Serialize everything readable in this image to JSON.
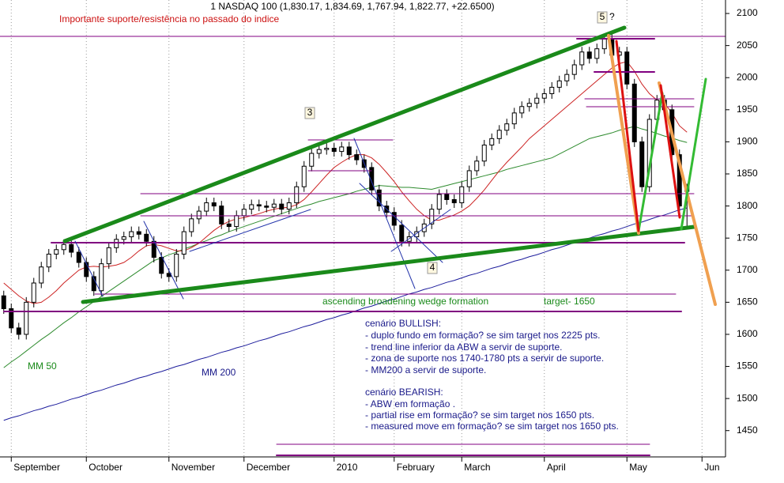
{
  "chart_data": {
    "type": "candlestick",
    "title": "1 NASDAQ 100 (1,830.17, 1,834.69, 1,767.94, 1,822.77, +22.6500)",
    "categories": [
      null,
      "September",
      null,
      null,
      null,
      null,
      null,
      null,
      null,
      null,
      null,
      "October",
      null,
      null,
      null,
      null,
      null,
      null,
      null,
      null,
      null,
      null,
      "November",
      null,
      null,
      null,
      null,
      null,
      null,
      null,
      null,
      null,
      "December",
      null,
      null,
      null,
      null,
      null,
      null,
      null,
      null,
      null,
      null,
      null,
      "2010",
      null,
      null,
      null,
      null,
      null,
      null,
      null,
      "February",
      null,
      null,
      null,
      null,
      null,
      null,
      null,
      null,
      "March",
      null,
      null,
      null,
      null,
      null,
      null,
      null,
      null,
      null,
      null,
      "April",
      null,
      null,
      null,
      null,
      null,
      null,
      null,
      null,
      null,
      null,
      "May",
      null,
      null,
      null,
      null,
      null,
      null,
      null,
      null,
      null,
      "Jun",
      null,
      null
    ],
    "open": [
      1660,
      1640,
      1610,
      1600,
      1650,
      1680,
      1705,
      1725,
      1732,
      1740,
      1728,
      1712,
      1690,
      1668,
      1710,
      1735,
      1748,
      1752,
      1760,
      1756,
      1745,
      1720,
      1695,
      1690,
      1725,
      1760,
      1780,
      1792,
      1805,
      1800,
      1772,
      1768,
      1785,
      1795,
      1802,
      1800,
      1798,
      1803,
      1795,
      1805,
      1830,
      1862,
      1882,
      1888,
      1890,
      1885,
      1892,
      1880,
      1872,
      1860,
      1825,
      1800,
      1790,
      1770,
      1745,
      1752,
      1760,
      1772,
      1795,
      1818,
      1810,
      1805,
      1830,
      1855,
      1870,
      1895,
      1905,
      1918,
      1928,
      1945,
      1955,
      1960,
      1968,
      1975,
      1985,
      1995,
      2005,
      2020,
      2040,
      2030,
      2045,
      2060,
      2035,
      2040,
      1990,
      1900,
      1830,
      1935,
      1965,
      1950,
      1880,
      1830.17,
      null,
      null,
      null,
      null
    ],
    "high": [
      1668,
      1648,
      1618,
      1658,
      1688,
      1713,
      1733,
      1740,
      1748,
      1748,
      1736,
      1720,
      1698,
      1718,
      1743,
      1756,
      1760,
      1768,
      1768,
      1764,
      1753,
      1728,
      1703,
      1733,
      1768,
      1788,
      1800,
      1813,
      1813,
      1808,
      1780,
      1793,
      1803,
      1810,
      1810,
      1808,
      1811,
      1811,
      1813,
      1838,
      1870,
      1890,
      1896,
      1898,
      1898,
      1900,
      1900,
      1888,
      1880,
      1868,
      1833,
      1808,
      1798,
      1778,
      1760,
      1768,
      1780,
      1803,
      1826,
      1826,
      1818,
      1838,
      1863,
      1878,
      1903,
      1913,
      1926,
      1936,
      1953,
      1963,
      1968,
      1976,
      1983,
      1993,
      2003,
      2013,
      2028,
      2048,
      2048,
      2053,
      2068,
      2068,
      2048,
      2048,
      1998,
      1908,
      1943,
      1973,
      1973,
      1958,
      1888,
      1834.69,
      null,
      null,
      null,
      null
    ],
    "low": [
      1632,
      1602,
      1592,
      1592,
      1642,
      1672,
      1697,
      1717,
      1724,
      1720,
      1704,
      1682,
      1660,
      1660,
      1702,
      1727,
      1740,
      1744,
      1748,
      1737,
      1712,
      1687,
      1682,
      1682,
      1717,
      1752,
      1772,
      1784,
      1792,
      1764,
      1760,
      1760,
      1777,
      1787,
      1792,
      1790,
      1790,
      1787,
      1787,
      1797,
      1822,
      1854,
      1874,
      1880,
      1877,
      1877,
      1872,
      1864,
      1852,
      1817,
      1792,
      1782,
      1762,
      1737,
      1737,
      1744,
      1752,
      1764,
      1787,
      1802,
      1797,
      1797,
      1822,
      1847,
      1862,
      1887,
      1897,
      1910,
      1920,
      1937,
      1947,
      1952,
      1960,
      1967,
      1977,
      1987,
      1997,
      2012,
      2022,
      2022,
      2037,
      2027,
      2027,
      1982,
      1892,
      1822,
      1822,
      1927,
      1942,
      1872,
      1792,
      1767.94,
      null,
      null,
      null,
      null
    ],
    "close": [
      1640,
      1610,
      1600,
      1650,
      1680,
      1705,
      1725,
      1732,
      1740,
      1728,
      1712,
      1690,
      1668,
      1710,
      1735,
      1748,
      1752,
      1760,
      1756,
      1745,
      1720,
      1695,
      1690,
      1725,
      1760,
      1780,
      1792,
      1805,
      1800,
      1772,
      1768,
      1785,
      1795,
      1802,
      1800,
      1798,
      1803,
      1795,
      1805,
      1830,
      1862,
      1882,
      1888,
      1890,
      1885,
      1892,
      1880,
      1872,
      1860,
      1825,
      1800,
      1790,
      1770,
      1745,
      1752,
      1760,
      1772,
      1795,
      1818,
      1810,
      1805,
      1830,
      1855,
      1870,
      1895,
      1905,
      1918,
      1928,
      1945,
      1955,
      1960,
      1968,
      1975,
      1985,
      1995,
      2005,
      2020,
      2040,
      2030,
      2045,
      2060,
      2035,
      2040,
      1990,
      1900,
      1830,
      1935,
      1965,
      1950,
      1880,
      1800,
      1822.77,
      null,
      null,
      null,
      null
    ],
    "up_color": "#ffffff",
    "down_color": "#000000",
    "series": [
      {
        "name": "MM 50",
        "color": "#2e8b2e",
        "values": [
          1548,
          1557,
          1565,
          1574,
          1583,
          1592,
          1600,
          1609,
          1618,
          1626,
          1635,
          1643,
          1651,
          1659,
          1667,
          1675,
          1683,
          1691,
          1699,
          1707,
          1715,
          1719,
          1724,
          1728,
          1733,
          1737,
          1742,
          1746,
          1751,
          1755,
          1760,
          1764,
          1768,
          1772,
          1776,
          1780,
          1784,
          1788,
          1792,
          1796,
          1800,
          1803,
          1807,
          1810,
          1813,
          1816,
          1819,
          1823,
          1826,
          1829,
          1832,
          1831,
          1830,
          1829,
          1829,
          1828,
          1827,
          1826,
          1829,
          1832,
          1835,
          1838,
          1841,
          1844,
          1847,
          1850,
          1853,
          1857,
          1860,
          1863,
          1866,
          1869,
          1872,
          1875,
          1881,
          1887,
          1893,
          1899,
          1905,
          1908,
          1911,
          1914,
          1918,
          1921,
          1924,
          1920,
          1917,
          1913,
          1909,
          1906,
          1902,
          1899,
          null,
          null,
          null,
          null
        ]
      },
      {
        "name": "MM 200",
        "color": "#1c1c9c",
        "values": [
          1466,
          1470,
          1473,
          1477,
          1481,
          1484,
          1488,
          1491,
          1495,
          1499,
          1502,
          1506,
          1510,
          1513,
          1517,
          1521,
          1524,
          1528,
          1532,
          1535,
          1539,
          1542,
          1546,
          1550,
          1553,
          1557,
          1561,
          1564,
          1568,
          1572,
          1575,
          1579,
          1582,
          1586,
          1590,
          1593,
          1597,
          1601,
          1604,
          1608,
          1612,
          1615,
          1619,
          1623,
          1626,
          1630,
          1633,
          1637,
          1641,
          1644,
          1648,
          1652,
          1655,
          1659,
          1663,
          1666,
          1670,
          1673,
          1677,
          1681,
          1684,
          1688,
          1692,
          1695,
          1699,
          1703,
          1706,
          1710,
          1714,
          1717,
          1721,
          1724,
          1728,
          1732,
          1735,
          1739,
          1743,
          1746,
          1750,
          1754,
          1757,
          1761,
          1764,
          1768,
          1772,
          1775,
          1779,
          1783,
          1786,
          1790,
          1794,
          1797,
          null,
          null,
          null,
          null
        ]
      },
      {
        "color": "#cc2222",
        "values": [
          1680,
          1670,
          1660,
          1652,
          1648,
          1650,
          1658,
          1668,
          1680,
          1690,
          1700,
          1705,
          1706,
          1705,
          1706,
          1708,
          1712,
          1720,
          1730,
          1738,
          1740,
          1738,
          1734,
          1730,
          1730,
          1735,
          1742,
          1752,
          1762,
          1770,
          1776,
          1780,
          1782,
          1785,
          1788,
          1792,
          1795,
          1797,
          1798,
          1802,
          1810,
          1822,
          1835,
          1848,
          1860,
          1868,
          1875,
          1880,
          1880,
          1875,
          1865,
          1852,
          1838,
          1822,
          1808,
          1795,
          1785,
          1778,
          1778,
          1782,
          1786,
          1792,
          1800,
          1812,
          1825,
          1840,
          1855,
          1868,
          1880,
          1892,
          1905,
          1915,
          1925,
          1935,
          1945,
          1955,
          1965,
          1975,
          1985,
          1995,
          2005,
          2015,
          2022,
          2025,
          2010,
          1990,
          1975,
          1965,
          1960,
          1945,
          1925,
          1915,
          null,
          null,
          null,
          null
        ]
      }
    ],
    "ylim": [
      1409,
      2121
    ],
    "yticks": [
      1450,
      1500,
      1550,
      1600,
      1650,
      1700,
      1750,
      1800,
      1850,
      1900,
      1950,
      2000,
      2050,
      2100
    ],
    "annotations": [
      "Importante suporte/resistência no passado do indice",
      "5",
      "?",
      "3",
      "4",
      "ascending broadening wedge formation",
      "target- 1650"
    ],
    "notes": [
      "cenário BULLISH:",
      "- duplo fundo em formação? se sim target nos 2225 pts.",
      "- trend line inferior da ABW  a servir de suporte.",
      "- zona de suporte nos 1740-1780 pts a servir de suporte.",
      "- MM200  a servir de suporte.",
      "cenário BEARISH:",
      "- ABW em formação .",
      "- partial rise em formação? se sim target nos 1650 pts.",
      "- measured move em formação? se sim target nos 1650 pts."
    ]
  }
}
